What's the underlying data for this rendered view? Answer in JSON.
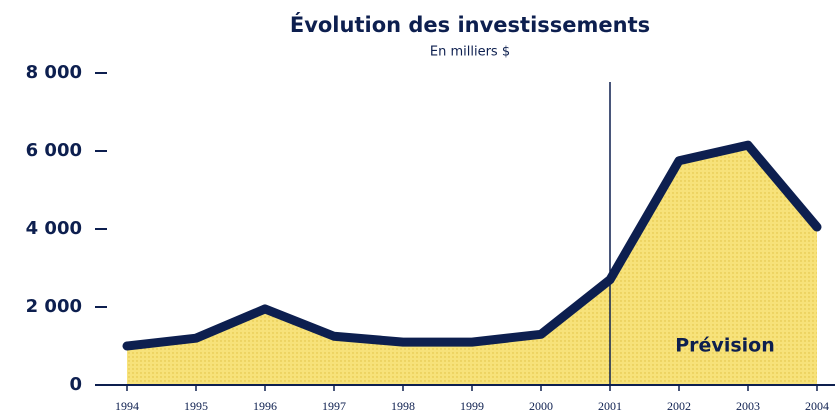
{
  "chart_data": {
    "type": "area",
    "title": "Évolution des investissements",
    "subtitle": "En milliers $",
    "categories": [
      "1994",
      "1995",
      "1996",
      "1997",
      "1998",
      "1999",
      "2000",
      "2001",
      "2002",
      "2003",
      "2004"
    ],
    "series": [
      {
        "name": "Investissements",
        "color": "#0d1f4f",
        "fill": "#f7e27a",
        "values": [
          1000,
          1200,
          1950,
          1250,
          1100,
          1100,
          1300,
          2700,
          5750,
          6150,
          4050
        ]
      }
    ],
    "ylim": [
      0,
      8000
    ],
    "yticks": [
      0,
      {
        "value": 2000,
        "label": "2 000"
      },
      {
        "value": 4000,
        "label": "4 000"
      },
      {
        "value": 6000,
        "label": "6 000"
      },
      {
        "value": 8000,
        "label": "8 000"
      }
    ],
    "annotation": {
      "text": "Prévision",
      "x": "2001"
    }
  }
}
